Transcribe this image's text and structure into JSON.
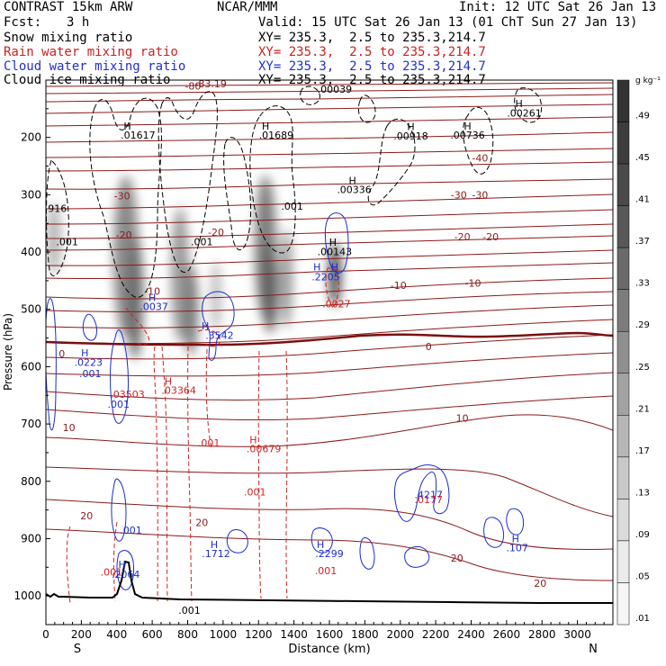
{
  "header": {
    "model": "CONTRAST 15km ARW",
    "center": "NCAR/MMM",
    "init": "Init: 12 UTC Sat 26 Jan 13",
    "fcst_label": "Fcst:",
    "fcst_value": "3 h",
    "valid": "Valid: 15 UTC Sat 26 Jan 13 (01 ChT Sun 27 Jan 13)",
    "rows": [
      {
        "field": "Snow mixing ratio",
        "xy": "XY= 235.3,  2.5 to 235.3,214.7"
      },
      {
        "field": "Rain water mixing ratio",
        "xy": "XY= 235.3,  2.5 to 235.3,214.7"
      },
      {
        "field": "Cloud water mixing ratio",
        "xy": "XY= 235.3,  2.5 to 235.3,214.7"
      },
      {
        "field": "Cloud ice mixing ratio",
        "xy": "XY= 235.3,  2.5 to 235.3,214.7"
      }
    ]
  },
  "chart_data": {
    "type": "cross-section",
    "xlabel": "Distance (km)",
    "ylabel": "Pressure (hPa)",
    "xlim": [
      0,
      3200
    ],
    "ylim": [
      1050,
      100
    ],
    "x_ticks": [
      0,
      200,
      400,
      600,
      800,
      1000,
      1200,
      1400,
      1600,
      1800,
      2000,
      2200,
      2400,
      2600,
      2800,
      3000
    ],
    "y_ticks": [
      200,
      300,
      400,
      500,
      600,
      700,
      800,
      900,
      1000
    ],
    "x_end_labels": {
      "left": "S",
      "right": "N"
    },
    "colorbar": {
      "unit": "g kg⁻¹",
      "ticks": [
        ".49",
        ".45",
        ".41",
        ".37",
        ".33",
        ".29",
        ".25",
        ".21",
        ".17",
        ".13",
        ".09",
        ".05",
        ".01"
      ],
      "colors": [
        "#333333",
        "#3d3d3d",
        "#4a4a4a",
        "#585858",
        "#6a6a6a",
        "#7c7c7c",
        "#8f8f8f",
        "#a2a2a2",
        "#b6b6b6",
        "#c9c9c9",
        "#dbdbdb",
        "#ebebeb",
        "#f6f6f6"
      ]
    },
    "temperature_labels": [
      {
        "text": "-80",
        "x": 830,
        "p": 110
      },
      {
        "text": "-83.19",
        "x": 930,
        "p": 106
      },
      {
        "text": "-30",
        "x": 430,
        "p": 302
      },
      {
        "text": "-30",
        "x": 2330,
        "p": 300
      },
      {
        "text": "-30",
        "x": 2450,
        "p": 300
      },
      {
        "text": "-40",
        "x": 2450,
        "p": 236
      },
      {
        "text": "-20",
        "x": 440,
        "p": 370
      },
      {
        "text": "-20",
        "x": 960,
        "p": 365
      },
      {
        "text": "-20",
        "x": 2350,
        "p": 373
      },
      {
        "text": "-20",
        "x": 2510,
        "p": 373
      },
      {
        "text": "-10",
        "x": 600,
        "p": 468
      },
      {
        "text": "-10",
        "x": 1990,
        "p": 458
      },
      {
        "text": "-10",
        "x": 2410,
        "p": 454
      },
      {
        "text": "0",
        "x": 90,
        "p": 577
      },
      {
        "text": "0",
        "x": 2160,
        "p": 565
      },
      {
        "text": "10",
        "x": 130,
        "p": 706
      },
      {
        "text": "10",
        "x": 2350,
        "p": 690
      },
      {
        "text": "20",
        "x": 230,
        "p": 860
      },
      {
        "text": "20",
        "x": 880,
        "p": 872
      },
      {
        "text": "20",
        "x": 2320,
        "p": 934
      },
      {
        "text": "20",
        "x": 2790,
        "p": 978
      }
    ],
    "black_labels": [
      {
        "text": "H",
        "x": 460,
        "p": 180
      },
      {
        "text": ".01617",
        "x": 520,
        "p": 196
      },
      {
        "text": "H",
        "x": 1240,
        "p": 180
      },
      {
        "text": ".01689",
        "x": 1300,
        "p": 196
      },
      {
        "text": ".00039",
        "x": 1630,
        "p": 116
      },
      {
        "text": "H",
        "x": 2060,
        "p": 181
      },
      {
        "text": ".00918",
        "x": 2060,
        "p": 197
      },
      {
        "text": "H",
        "x": 2380,
        "p": 180
      },
      {
        "text": ".00736",
        "x": 2380,
        "p": 196
      },
      {
        "text": "H",
        "x": 2670,
        "p": 141
      },
      {
        "text": ".00261",
        "x": 2700,
        "p": 157
      },
      {
        "text": "H",
        "x": 1730,
        "p": 275
      },
      {
        "text": ".00336",
        "x": 1740,
        "p": 291
      },
      {
        "text": ".001",
        "x": 1390,
        "p": 320
      },
      {
        "text": ".001",
        "x": 120,
        "p": 382
      },
      {
        "text": ".001",
        "x": 880,
        "p": 382
      },
      {
        "text": "H",
        "x": 1620,
        "p": 383
      },
      {
        "text": ".00143",
        "x": 1630,
        "p": 399
      },
      {
        "text": ".001",
        "x": 810,
        "p": 1025
      },
      {
        "text": "916",
        "x": 65,
        "p": 324
      }
    ],
    "red_labels": [
      {
        "text": ".0027",
        "x": 1640,
        "p": 490
      },
      {
        "text": ".03503",
        "x": 460,
        "p": 648
      },
      {
        "text": "H",
        "x": 690,
        "p": 625
      },
      {
        "text": ".03364",
        "x": 750,
        "p": 641
      },
      {
        "text": ".001",
        "x": 920,
        "p": 733
      },
      {
        "text": "H",
        "x": 1170,
        "p": 727
      },
      {
        "text": ".00679",
        "x": 1230,
        "p": 743
      },
      {
        "text": ".001",
        "x": 1180,
        "p": 818
      },
      {
        "text": ".001",
        "x": 370,
        "p": 958
      },
      {
        "text": ".001",
        "x": 1580,
        "p": 956
      },
      {
        "text": ".0177",
        "x": 2160,
        "p": 832
      }
    ],
    "blue_labels": [
      {
        "text": "H",
        "x": 600,
        "p": 479
      },
      {
        "text": ".0037",
        "x": 610,
        "p": 495
      },
      {
        "text": "H",
        "x": 900,
        "p": 529
      },
      {
        "text": ".3542",
        "x": 980,
        "p": 545
      },
      {
        "text": "H",
        "x": 1530,
        "p": 426
      },
      {
        "text": ".2205",
        "x": 1580,
        "p": 443
      },
      {
        "text": "H",
        "x": 1630,
        "p": 426
      },
      {
        "text": "H",
        "x": 220,
        "p": 576
      },
      {
        "text": ".0223",
        "x": 240,
        "p": 592
      },
      {
        "text": ".001",
        "x": 250,
        "p": 612
      },
      {
        "text": ".001",
        "x": 410,
        "p": 665
      },
      {
        "text": ".001",
        "x": 480,
        "p": 885
      },
      {
        "text": "H",
        "x": 430,
        "p": 945
      },
      {
        "text": ".2064",
        "x": 450,
        "p": 962
      },
      {
        "text": "H",
        "x": 950,
        "p": 910
      },
      {
        "text": ".1712",
        "x": 960,
        "p": 926
      },
      {
        "text": "H",
        "x": 1550,
        "p": 910
      },
      {
        "text": ".2299",
        "x": 1600,
        "p": 926
      },
      {
        "text": "H",
        "x": 2650,
        "p": 900
      },
      {
        "text": ".107",
        "x": 2660,
        "p": 916
      },
      {
        "text": ".4217",
        "x": 2160,
        "p": 823
      }
    ]
  }
}
